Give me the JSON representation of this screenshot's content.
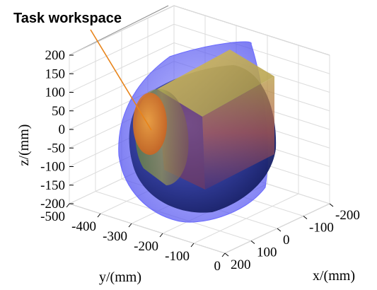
{
  "annotation": {
    "text": "Task workspace"
  },
  "chart_data": {
    "type": "3d-surface",
    "title": "",
    "annotation": "Task workspace",
    "axes": {
      "x": {
        "label": "x/(mm)",
        "ticks": [
          -200,
          -100,
          0,
          100,
          200
        ],
        "range": [
          -200,
          200
        ]
      },
      "y": {
        "label": "y/(mm)",
        "ticks": [
          -500,
          -400,
          -300,
          -200,
          -100,
          0
        ],
        "range": [
          -500,
          0
        ]
      },
      "z": {
        "label": "z/(mm)",
        "ticks": [
          -200,
          -150,
          -100,
          -50,
          0,
          50,
          100,
          150,
          200
        ],
        "range": [
          -200,
          200
        ]
      }
    },
    "grid": true,
    "surfaces": [
      {
        "shape": "outer translucent envelope",
        "color": "#5a5aff"
      },
      {
        "shape": "inner dome volume",
        "color": "#2a3a9a"
      },
      {
        "shape": "task workspace (cylinder with box)",
        "color": "#c8a020"
      }
    ]
  }
}
